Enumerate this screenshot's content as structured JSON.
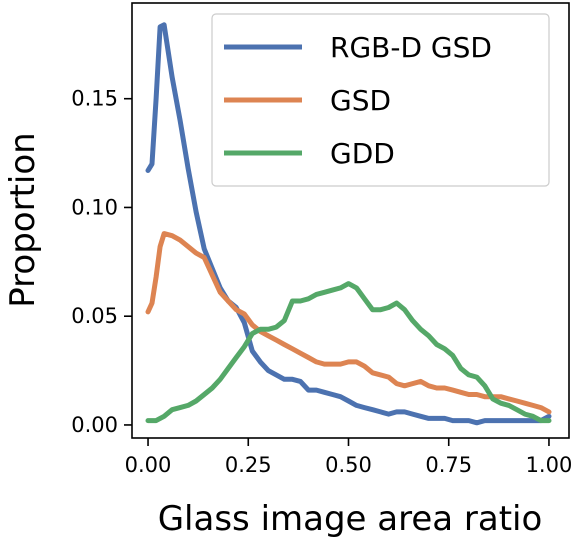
{
  "chart_data": {
    "type": "line",
    "title": "",
    "xlabel": "Glass image area ratio",
    "ylabel": "Proportion",
    "xlim": [
      -0.04,
      1.05
    ],
    "ylim": [
      -0.006,
      0.194
    ],
    "xticks": [
      0.0,
      0.25,
      0.5,
      0.75,
      1.0
    ],
    "xtick_labels": [
      "0.00",
      "0.25",
      "0.50",
      "0.75",
      "1.00"
    ],
    "yticks": [
      0.0,
      0.05,
      0.1,
      0.15
    ],
    "ytick_labels": [
      "0.00",
      "0.05",
      "0.10",
      "0.15"
    ],
    "grid": false,
    "legend_position": "upper right",
    "series": [
      {
        "name": "RGB-D GSD",
        "color": "#4c72b0",
        "x": [
          0.0,
          0.01,
          0.02,
          0.03,
          0.04,
          0.05,
          0.06,
          0.08,
          0.1,
          0.12,
          0.14,
          0.16,
          0.18,
          0.2,
          0.22,
          0.24,
          0.26,
          0.28,
          0.3,
          0.32,
          0.34,
          0.36,
          0.38,
          0.4,
          0.42,
          0.44,
          0.46,
          0.48,
          0.5,
          0.52,
          0.54,
          0.56,
          0.58,
          0.6,
          0.62,
          0.64,
          0.66,
          0.68,
          0.7,
          0.72,
          0.74,
          0.76,
          0.78,
          0.8,
          0.82,
          0.84,
          0.86,
          0.88,
          0.9,
          0.92,
          0.94,
          0.96,
          0.98,
          1.0
        ],
        "y": [
          0.117,
          0.12,
          0.15,
          0.183,
          0.184,
          0.172,
          0.16,
          0.14,
          0.118,
          0.098,
          0.081,
          0.072,
          0.063,
          0.057,
          0.054,
          0.047,
          0.034,
          0.029,
          0.025,
          0.023,
          0.021,
          0.021,
          0.02,
          0.016,
          0.016,
          0.015,
          0.014,
          0.013,
          0.011,
          0.009,
          0.008,
          0.007,
          0.006,
          0.005,
          0.006,
          0.006,
          0.005,
          0.004,
          0.003,
          0.003,
          0.003,
          0.002,
          0.002,
          0.002,
          0.001,
          0.002,
          0.002,
          0.002,
          0.002,
          0.002,
          0.002,
          0.002,
          0.002,
          0.004
        ]
      },
      {
        "name": "GSD",
        "color": "#dd8452",
        "x": [
          0.0,
          0.01,
          0.02,
          0.03,
          0.04,
          0.06,
          0.08,
          0.1,
          0.12,
          0.14,
          0.16,
          0.18,
          0.2,
          0.22,
          0.24,
          0.26,
          0.28,
          0.3,
          0.32,
          0.34,
          0.36,
          0.38,
          0.4,
          0.42,
          0.44,
          0.46,
          0.48,
          0.5,
          0.52,
          0.54,
          0.56,
          0.58,
          0.6,
          0.62,
          0.64,
          0.66,
          0.68,
          0.7,
          0.72,
          0.74,
          0.76,
          0.78,
          0.8,
          0.82,
          0.84,
          0.86,
          0.88,
          0.9,
          0.92,
          0.94,
          0.96,
          0.98,
          1.0
        ],
        "y": [
          0.052,
          0.056,
          0.068,
          0.082,
          0.088,
          0.087,
          0.085,
          0.082,
          0.079,
          0.077,
          0.069,
          0.061,
          0.057,
          0.053,
          0.051,
          0.046,
          0.043,
          0.041,
          0.039,
          0.037,
          0.035,
          0.033,
          0.031,
          0.029,
          0.028,
          0.028,
          0.028,
          0.029,
          0.029,
          0.027,
          0.024,
          0.023,
          0.022,
          0.019,
          0.018,
          0.019,
          0.02,
          0.018,
          0.017,
          0.017,
          0.016,
          0.015,
          0.014,
          0.014,
          0.013,
          0.013,
          0.013,
          0.012,
          0.011,
          0.01,
          0.009,
          0.008,
          0.006
        ]
      },
      {
        "name": "GDD",
        "color": "#55a868",
        "x": [
          0.0,
          0.02,
          0.04,
          0.06,
          0.08,
          0.1,
          0.12,
          0.14,
          0.16,
          0.18,
          0.2,
          0.22,
          0.24,
          0.26,
          0.28,
          0.3,
          0.32,
          0.34,
          0.36,
          0.38,
          0.4,
          0.42,
          0.44,
          0.46,
          0.48,
          0.5,
          0.52,
          0.54,
          0.56,
          0.58,
          0.6,
          0.62,
          0.64,
          0.66,
          0.68,
          0.7,
          0.72,
          0.74,
          0.76,
          0.78,
          0.8,
          0.82,
          0.84,
          0.86,
          0.88,
          0.9,
          0.92,
          0.94,
          0.96,
          0.98,
          1.0
        ],
        "y": [
          0.002,
          0.002,
          0.004,
          0.007,
          0.008,
          0.009,
          0.011,
          0.014,
          0.017,
          0.021,
          0.026,
          0.031,
          0.036,
          0.042,
          0.044,
          0.044,
          0.045,
          0.048,
          0.057,
          0.057,
          0.058,
          0.06,
          0.061,
          0.062,
          0.063,
          0.065,
          0.063,
          0.058,
          0.053,
          0.053,
          0.054,
          0.056,
          0.053,
          0.048,
          0.044,
          0.041,
          0.037,
          0.035,
          0.032,
          0.026,
          0.023,
          0.022,
          0.018,
          0.012,
          0.01,
          0.009,
          0.007,
          0.005,
          0.004,
          0.002,
          0.002
        ]
      }
    ]
  }
}
